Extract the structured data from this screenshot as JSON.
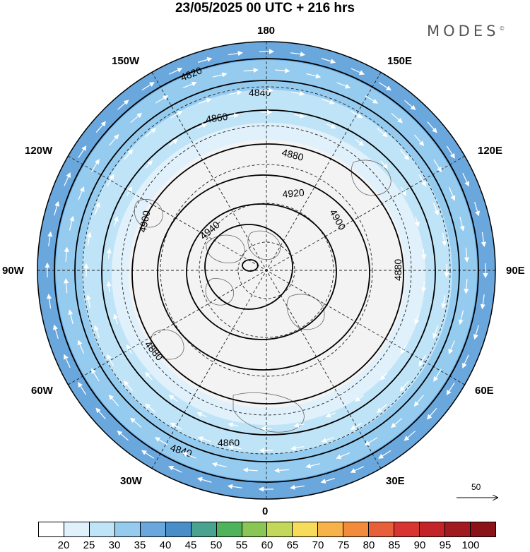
{
  "title": "23/05/2025  00 UTC  + 216 hrs",
  "brand": "MODES",
  "brand_mark": "©",
  "longitude_labels": {
    "lon_180": "180",
    "lon_150w": "150W",
    "lon_150e": "150E",
    "lon_120w": "120W",
    "lon_120e": "120E",
    "lon_90w": "90W",
    "lon_90e": "90E",
    "lon_60w": "60W",
    "lon_60e": "60E",
    "lon_30w": "30W",
    "lon_30e": "30E",
    "lon_0": "0"
  },
  "reference_vector": {
    "label": "50"
  },
  "contour_levels": [
    "4820",
    "4840",
    "4860",
    "4880",
    "4900",
    "4920",
    "4940"
  ],
  "colorbar": {
    "labels": [
      "20",
      "25",
      "30",
      "35",
      "40",
      "45",
      "50",
      "55",
      "60",
      "65",
      "70",
      "75",
      "80",
      "85",
      "90",
      "95",
      "100"
    ],
    "colors": [
      "#ffffff",
      "#e1f1fb",
      "#c0e4f7",
      "#94cbef",
      "#6aa7dd",
      "#4a8ec9",
      "#4aa38f",
      "#4eb35a",
      "#8ac656",
      "#c3d85a",
      "#f7dc5c",
      "#f7b24a",
      "#f28c3c",
      "#e8603a",
      "#d93530",
      "#c22428",
      "#a11a1f",
      "#8a1218"
    ]
  },
  "colors": {
    "band_20": "#f3f3f3",
    "band_25": "#e1f1fb",
    "band_30": "#c0e4f7",
    "band_35": "#94cbef",
    "band_40": "#6aa7dd"
  }
}
